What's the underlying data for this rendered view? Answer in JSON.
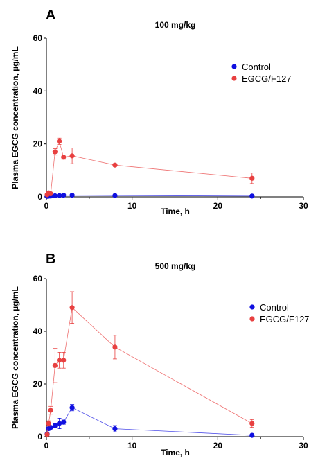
{
  "chart_data": [
    {
      "type": "line",
      "panel_label": "A",
      "title": "100 mg/kg",
      "xlabel": "Time, h",
      "ylabel": "Plasma EGCG concentration,  µg/mL",
      "xlim": [
        0,
        30
      ],
      "ylim": [
        0,
        60
      ],
      "xticks": [
        0,
        10,
        20,
        30
      ],
      "yticks": [
        0,
        20,
        40,
        60
      ],
      "grid": false,
      "legend_position": "top-right",
      "series": [
        {
          "name": "Control",
          "color": "#1010e0",
          "x": [
            0.083,
            0.25,
            0.5,
            1,
            1.5,
            2,
            3,
            8,
            24
          ],
          "y": [
            0.2,
            0.25,
            0.3,
            0.4,
            0.5,
            0.6,
            0.6,
            0.5,
            0.3
          ],
          "err": [
            0.1,
            0.1,
            0.1,
            0.1,
            0.1,
            0.1,
            0.1,
            0.1,
            0.1
          ]
        },
        {
          "name": "EGCG/F127",
          "color": "#e84040",
          "x": [
            0.083,
            0.25,
            0.5,
            1,
            1.5,
            2,
            3,
            8,
            24
          ],
          "y": [
            0.8,
            1.5,
            1.2,
            17,
            21,
            15,
            15.5,
            12,
            7
          ],
          "err": [
            0.3,
            0.6,
            0.4,
            1.2,
            1.2,
            0.8,
            3,
            0.5,
            2
          ]
        }
      ]
    },
    {
      "type": "line",
      "panel_label": "B",
      "title": "500 mg/kg",
      "xlabel": "Time, h",
      "ylabel": "Plasma EGCG concentration,  µg/mL",
      "xlim": [
        0,
        30
      ],
      "ylim": [
        0,
        60
      ],
      "xticks": [
        0,
        10,
        20,
        30
      ],
      "yticks": [
        0,
        20,
        40,
        60
      ],
      "grid": false,
      "legend_position": "top-right",
      "series": [
        {
          "name": "Control",
          "color": "#1010e0",
          "x": [
            0.083,
            0.25,
            0.5,
            1,
            1.5,
            2,
            3,
            8,
            24
          ],
          "y": [
            1,
            3,
            3.5,
            4.2,
            5,
            5.5,
            11,
            3,
            0.5
          ],
          "err": [
            0.3,
            0.6,
            0.6,
            0.8,
            2,
            0.8,
            1.2,
            1.2,
            0.2
          ]
        },
        {
          "name": "EGCG/F127",
          "color": "#e84040",
          "x": [
            0.083,
            0.25,
            0.5,
            1,
            1.5,
            2,
            3,
            8,
            24
          ],
          "y": [
            0.8,
            5,
            10,
            27,
            29,
            29,
            49,
            34,
            5
          ],
          "err": [
            0.3,
            1,
            1.5,
            6.5,
            3,
            3,
            6,
            4.5,
            1.5
          ]
        }
      ]
    }
  ]
}
